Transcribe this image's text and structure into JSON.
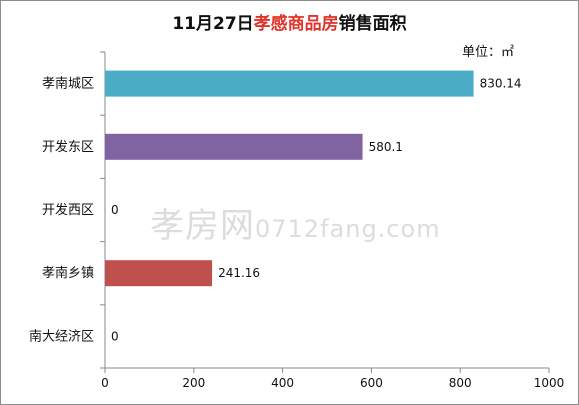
{
  "title": {
    "prefix": "11月27日",
    "highlight": "孝感商品房",
    "suffix": "销售面积"
  },
  "unit_label": "单位：㎡",
  "watermark": {
    "brand": "孝房网",
    "url": "0712fang.com"
  },
  "colors": {
    "axis": "#8a8a8a",
    "title_highlight": "#e0342a"
  },
  "chart_data": {
    "type": "bar",
    "orientation": "horizontal",
    "categories": [
      "孝南城区",
      "开发东区",
      "开发西区",
      "孝南乡镇",
      "南大经济区"
    ],
    "values": [
      830.14,
      580.1,
      0,
      241.16,
      0
    ],
    "value_labels": [
      "830.14",
      "580.1",
      "0",
      "241.16",
      "0"
    ],
    "bar_colors": [
      "#4bacc6",
      "#8064a2",
      "#4f81bd",
      "#c0504d",
      "#9bbb59"
    ],
    "xlim": [
      0,
      1000
    ],
    "xticks": [
      0,
      200,
      400,
      600,
      800,
      1000
    ],
    "grid": false,
    "legend": "none"
  }
}
